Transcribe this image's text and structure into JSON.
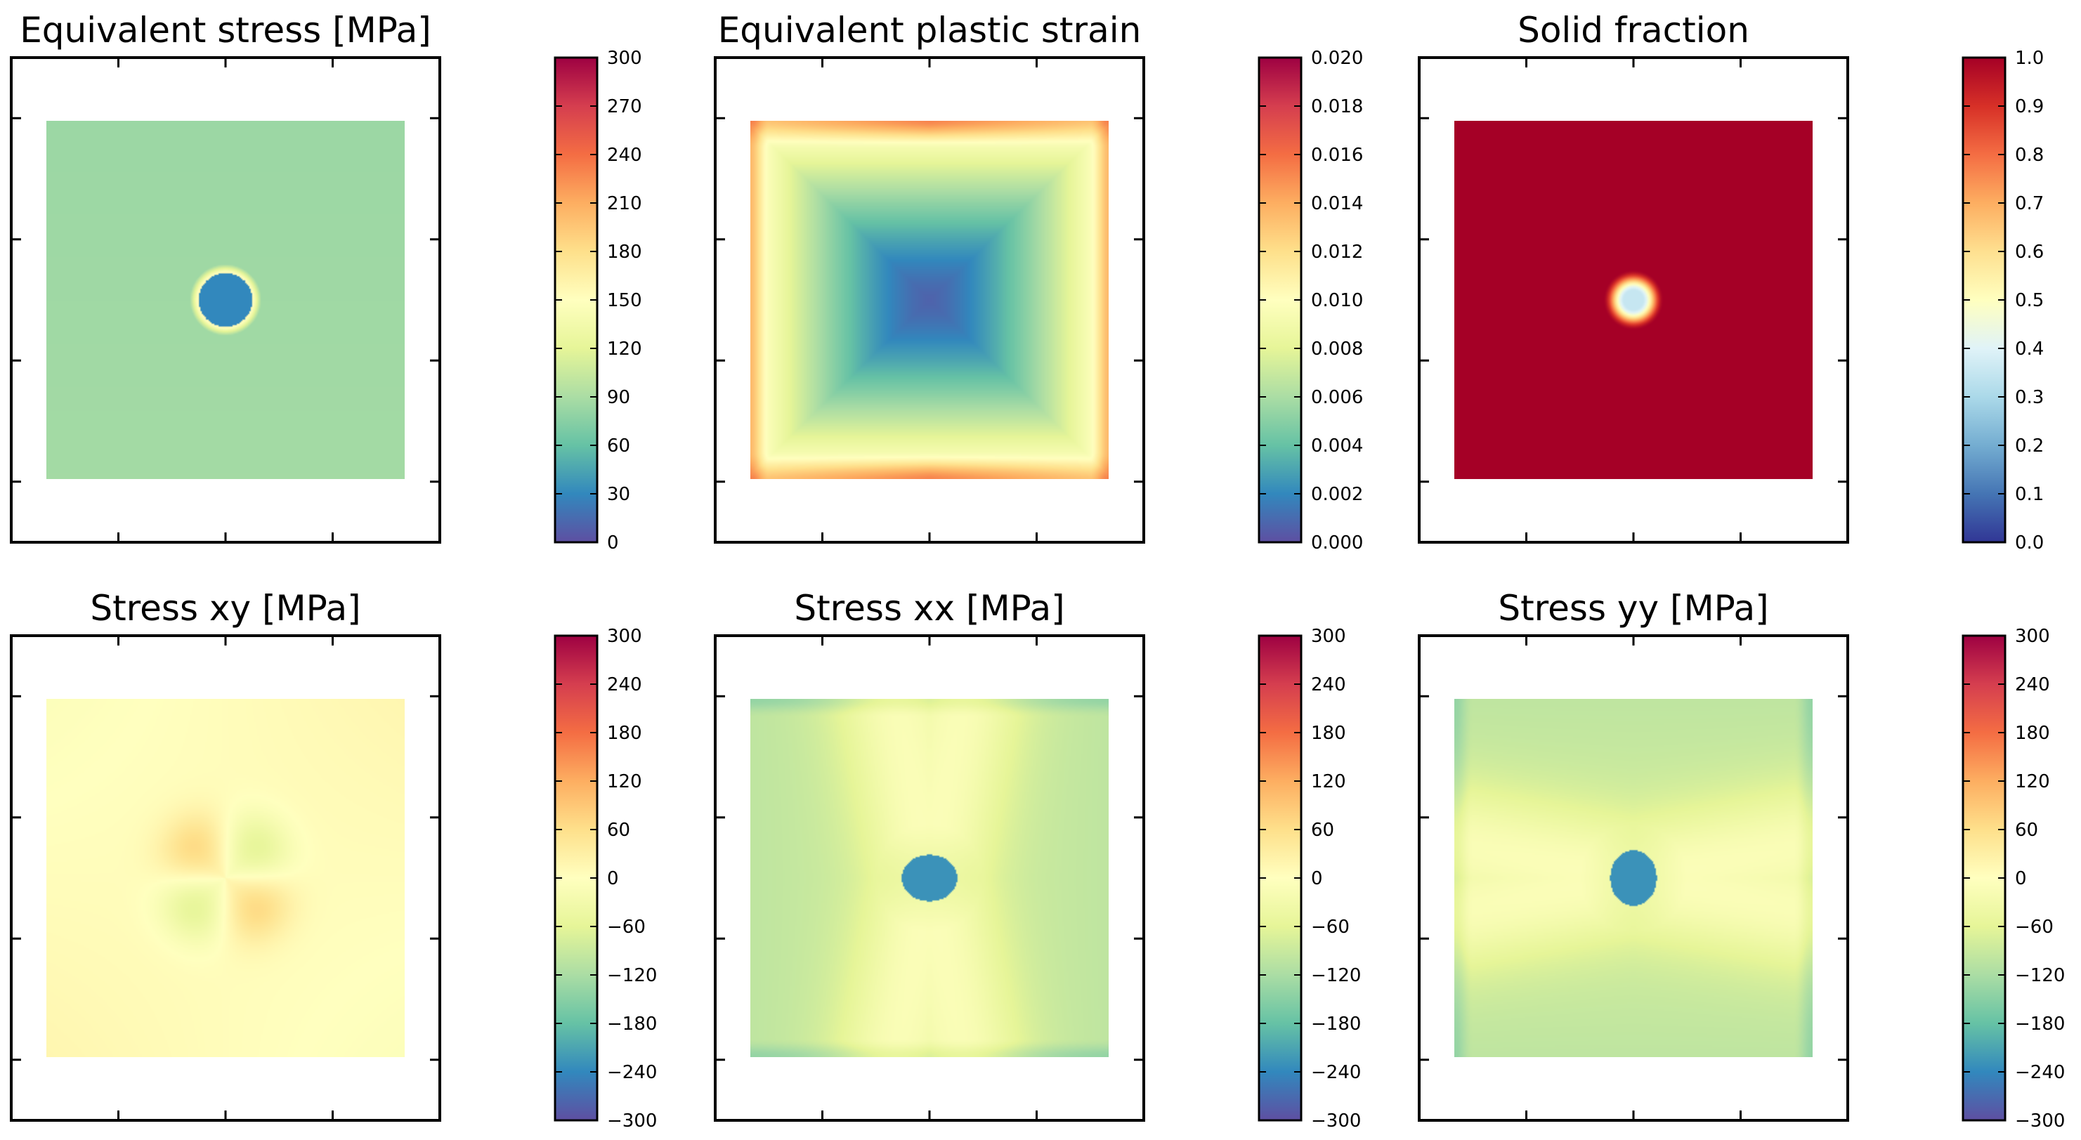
{
  "chart_data": [
    {
      "type": "heatmap",
      "title": "Equivalent stress [MPa]",
      "field": "von-mises-stress",
      "colormap": "Spectral_r",
      "colorbar": {
        "min": 0,
        "max": 300,
        "ticks": [
          "0",
          "30",
          "60",
          "90",
          "120",
          "150",
          "180",
          "210",
          "240",
          "270",
          "300"
        ]
      },
      "pattern": "uniform-inclusion",
      "background_value": 85,
      "inclusion_value": 30,
      "rim_value": 160
    },
    {
      "type": "heatmap",
      "title": "Equivalent plastic strain",
      "field": "plastic-strain",
      "colormap": "Spectral_r",
      "colorbar": {
        "min": 0,
        "max": 0.02,
        "ticks": [
          "0.000",
          "0.002",
          "0.004",
          "0.006",
          "0.008",
          "0.010",
          "0.012",
          "0.014",
          "0.016",
          "0.018",
          "0.020"
        ]
      },
      "pattern": "radial-square",
      "center_value": 0.0007,
      "edge_value": 0.011,
      "top_bottom_edge_value": 0.015
    },
    {
      "type": "heatmap",
      "title": "Solid fraction",
      "field": "solid-fraction",
      "colormap": "RdYlBu_r",
      "colorbar": {
        "min": 0,
        "max": 1,
        "ticks": [
          "0.0",
          "0.1",
          "0.2",
          "0.3",
          "0.4",
          "0.5",
          "0.6",
          "0.7",
          "0.8",
          "0.9",
          "1.0"
        ]
      },
      "pattern": "liquid-spot",
      "background_value": 1.0,
      "center_value": 0.35
    },
    {
      "type": "heatmap",
      "title": "Stress xy [MPa]",
      "field": "shear-stress",
      "colormap": "Spectral_r",
      "colorbar": {
        "min": -300,
        "max": 300,
        "ticks": [
          "−300",
          "−240",
          "−180",
          "−120",
          "−60",
          "0",
          "60",
          "120",
          "180",
          "240",
          "300"
        ]
      },
      "pattern": "quadrupole",
      "background_value": 5,
      "lobe_value": 60
    },
    {
      "type": "heatmap",
      "title": "Stress xx [MPa]",
      "field": "normal-stress-xx",
      "colormap": "Spectral_r",
      "colorbar": {
        "min": -300,
        "max": 300,
        "ticks": [
          "−300",
          "−240",
          "−180",
          "−120",
          "−60",
          "0",
          "60",
          "120",
          "180",
          "240",
          "300"
        ]
      },
      "pattern": "cross-x",
      "background_value": -80,
      "inclusion_value": -230
    },
    {
      "type": "heatmap",
      "title": "Stress yy [MPa]",
      "field": "normal-stress-yy",
      "colormap": "Spectral_r",
      "colorbar": {
        "min": -300,
        "max": 300,
        "ticks": [
          "−300",
          "−240",
          "−180",
          "−120",
          "−60",
          "0",
          "60",
          "120",
          "180",
          "240",
          "300"
        ]
      },
      "pattern": "cross-y",
      "background_value": -80,
      "inclusion_value": -230
    }
  ],
  "colors": {
    "frame": "#000000",
    "background": "#ffffff"
  }
}
